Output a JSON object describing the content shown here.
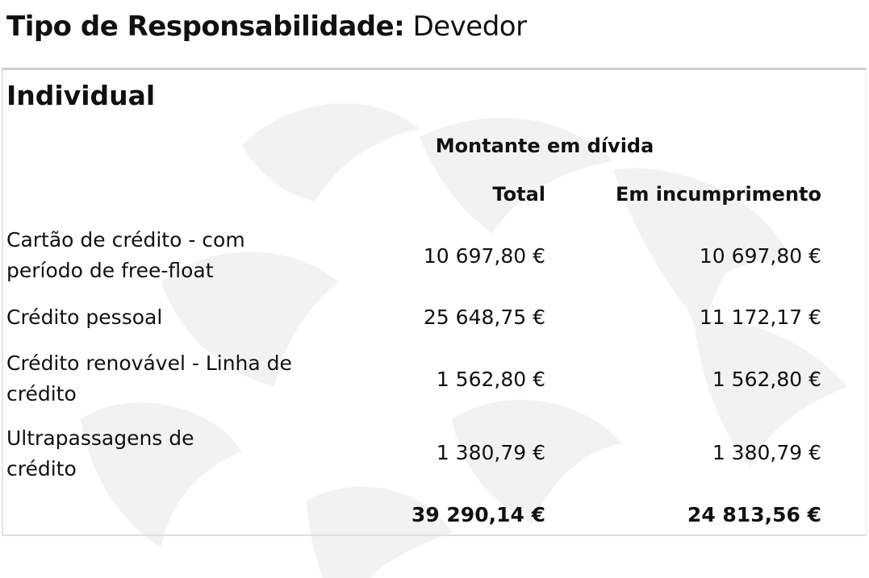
{
  "header": {
    "label": "Tipo de Responsabilidade:",
    "value": "Devedor"
  },
  "section": {
    "title": "Individual",
    "group_header": "Montante em dívida",
    "columns": [
      "Total",
      "Em incumprimento"
    ],
    "rows": [
      {
        "label": "Cartão de crédito - com período de free-float",
        "total": "10 697,80 €",
        "incumprimento": "10 697,80 €"
      },
      {
        "label": "Crédito pessoal",
        "total": "25 648,75 €",
        "incumprimento": "11 172,17 €"
      },
      {
        "label": "Crédito renovável - Linha de crédito",
        "total": "1 562,80 €",
        "incumprimento": "1 562,80 €"
      },
      {
        "label": "Ultrapassagens de crédito",
        "total": "1 380,79 €",
        "incumprimento": "1 380,79 €"
      }
    ],
    "totals": {
      "total": "39 290,14 €",
      "incumprimento": "24 813,56 €"
    }
  },
  "colors": {
    "text": "#111111",
    "border": "#cfcfcf",
    "watermark": "#f1f1f1"
  }
}
